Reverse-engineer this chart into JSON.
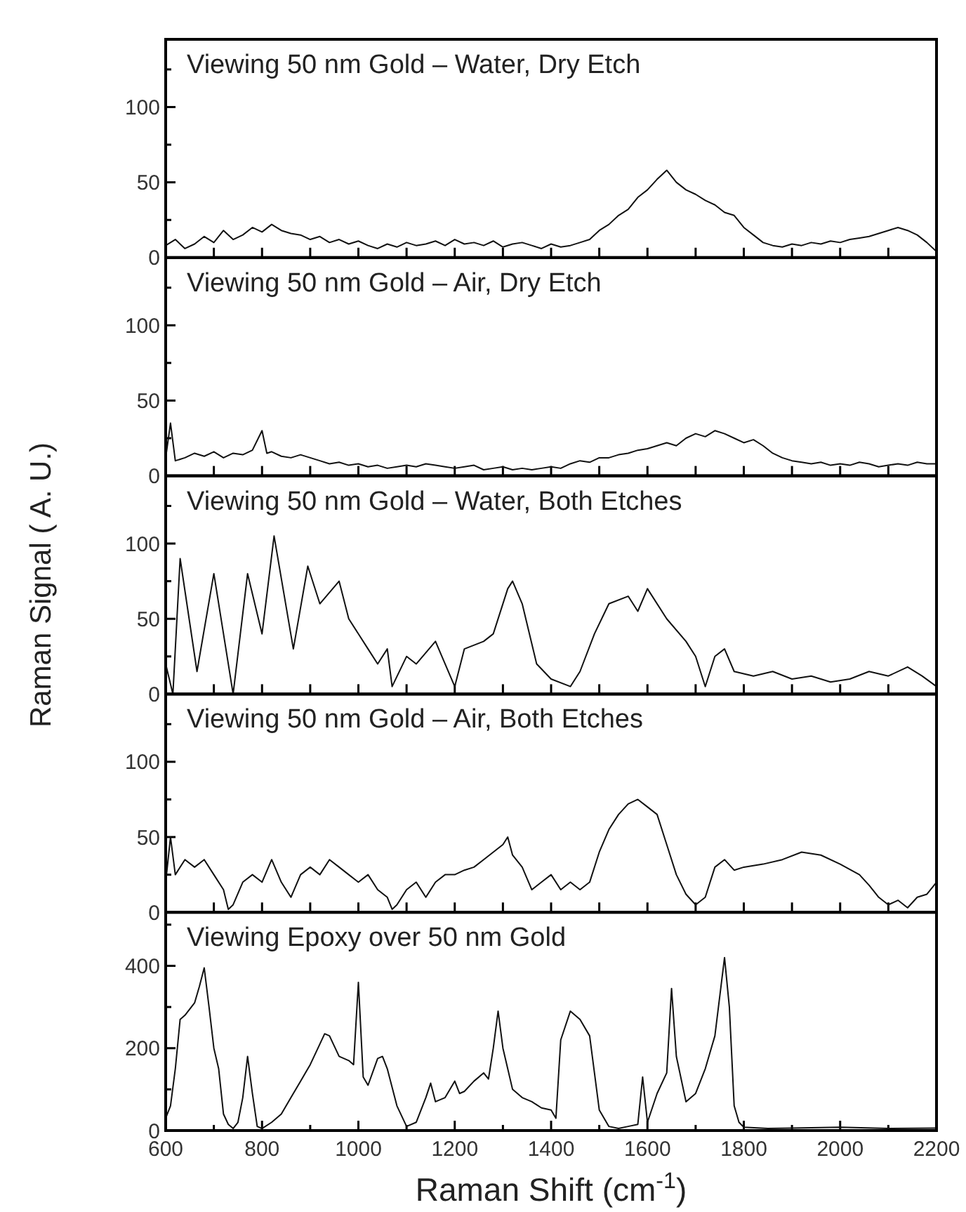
{
  "chart_data": [
    {
      "type": "line",
      "title": "Viewing 50 nm Gold – Water, Dry Etch",
      "tick_labels": "y",
      "xlim": [
        600,
        2200
      ],
      "xticks": [
        {
          "value": 600,
          "label": null
        },
        {
          "value": 700,
          "label": null
        },
        {
          "value": 800,
          "label": null
        },
        {
          "value": 900,
          "label": null
        },
        {
          "value": 1000,
          "label": null
        },
        {
          "value": 1100,
          "label": null
        },
        {
          "value": 1200,
          "label": null
        },
        {
          "value": 1300,
          "label": null
        },
        {
          "value": 1400,
          "label": null
        },
        {
          "value": 1500,
          "label": null
        },
        {
          "value": 1600,
          "label": null
        },
        {
          "value": 1700,
          "label": null
        },
        {
          "value": 1800,
          "label": null
        },
        {
          "value": 1900,
          "label": null
        },
        {
          "value": 2000,
          "label": null
        },
        {
          "value": 2100,
          "label": null
        },
        {
          "value": 2200,
          "label": null
        }
      ],
      "ylim": [
        0,
        145
      ],
      "yticks": [
        0,
        {
          "value": 25,
          "label": null
        },
        50,
        {
          "value": 75,
          "label": null
        },
        100,
        {
          "value": 125,
          "label": null
        }
      ],
      "series": [
        {
          "color": "#111111",
          "x": [
            600,
            620,
            640,
            660,
            680,
            700,
            720,
            740,
            760,
            780,
            800,
            820,
            840,
            860,
            880,
            900,
            920,
            940,
            960,
            980,
            1000,
            1020,
            1040,
            1060,
            1080,
            1100,
            1120,
            1140,
            1160,
            1180,
            1200,
            1220,
            1240,
            1260,
            1280,
            1300,
            1320,
            1340,
            1360,
            1380,
            1400,
            1420,
            1440,
            1460,
            1480,
            1500,
            1520,
            1540,
            1560,
            1580,
            1600,
            1620,
            1640,
            1660,
            1680,
            1700,
            1720,
            1740,
            1760,
            1780,
            1800,
            1820,
            1840,
            1860,
            1880,
            1900,
            1920,
            1940,
            1960,
            1980,
            2000,
            2020,
            2040,
            2060,
            2080,
            2100,
            2120,
            2140,
            2160,
            2180,
            2200
          ],
          "values": [
            8,
            12,
            6,
            9,
            14,
            10,
            18,
            12,
            15,
            20,
            17,
            22,
            18,
            16,
            15,
            12,
            14,
            10,
            12,
            9,
            11,
            8,
            6,
            9,
            7,
            10,
            8,
            9,
            11,
            8,
            12,
            9,
            10,
            8,
            11,
            7,
            9,
            10,
            8,
            6,
            9,
            7,
            8,
            10,
            12,
            18,
            22,
            28,
            32,
            40,
            45,
            52,
            58,
            50,
            45,
            42,
            38,
            35,
            30,
            28,
            20,
            15,
            10,
            8,
            7,
            9,
            8,
            10,
            9,
            11,
            10,
            12,
            13,
            14,
            16,
            18,
            20,
            18,
            15,
            10,
            4
          ]
        }
      ]
    },
    {
      "type": "line",
      "title": "Viewing 50 nm Gold – Air, Dry Etch",
      "tick_labels": "y",
      "xlim": [
        600,
        2200
      ],
      "xticks": [
        {
          "value": 600,
          "label": null
        },
        {
          "value": 700,
          "label": null
        },
        {
          "value": 800,
          "label": null
        },
        {
          "value": 900,
          "label": null
        },
        {
          "value": 1000,
          "label": null
        },
        {
          "value": 1100,
          "label": null
        },
        {
          "value": 1200,
          "label": null
        },
        {
          "value": 1300,
          "label": null
        },
        {
          "value": 1400,
          "label": null
        },
        {
          "value": 1500,
          "label": null
        },
        {
          "value": 1600,
          "label": null
        },
        {
          "value": 1700,
          "label": null
        },
        {
          "value": 1800,
          "label": null
        },
        {
          "value": 1900,
          "label": null
        },
        {
          "value": 2000,
          "label": null
        },
        {
          "value": 2100,
          "label": null
        },
        {
          "value": 2200,
          "label": null
        }
      ],
      "ylim": [
        0,
        145
      ],
      "yticks": [
        0,
        {
          "value": 25,
          "label": null
        },
        50,
        {
          "value": 75,
          "label": null
        },
        100,
        {
          "value": 125,
          "label": null
        }
      ],
      "series": [
        {
          "color": "#111111",
          "x": [
            600,
            610,
            620,
            640,
            660,
            680,
            700,
            720,
            740,
            760,
            780,
            800,
            810,
            820,
            840,
            860,
            880,
            900,
            920,
            940,
            960,
            980,
            1000,
            1020,
            1040,
            1060,
            1080,
            1100,
            1120,
            1140,
            1160,
            1180,
            1200,
            1220,
            1240,
            1260,
            1280,
            1300,
            1320,
            1340,
            1360,
            1380,
            1400,
            1420,
            1440,
            1460,
            1480,
            1500,
            1520,
            1540,
            1560,
            1580,
            1600,
            1620,
            1640,
            1660,
            1680,
            1700,
            1720,
            1740,
            1760,
            1780,
            1800,
            1820,
            1840,
            1860,
            1880,
            1900,
            1920,
            1940,
            1960,
            1980,
            2000,
            2020,
            2040,
            2060,
            2080,
            2100,
            2120,
            2140,
            2160,
            2180,
            2200
          ],
          "values": [
            12,
            35,
            10,
            12,
            15,
            13,
            16,
            12,
            15,
            14,
            17,
            30,
            15,
            16,
            13,
            12,
            14,
            12,
            10,
            8,
            9,
            7,
            8,
            6,
            7,
            5,
            6,
            7,
            6,
            8,
            7,
            6,
            5,
            6,
            7,
            4,
            5,
            6,
            4,
            5,
            4,
            5,
            6,
            5,
            8,
            10,
            9,
            12,
            12,
            14,
            15,
            17,
            18,
            20,
            22,
            20,
            25,
            28,
            26,
            30,
            28,
            25,
            22,
            24,
            20,
            15,
            12,
            10,
            9,
            8,
            9,
            7,
            8,
            7,
            9,
            8,
            6,
            7,
            8,
            7,
            9,
            8,
            8
          ]
        }
      ]
    },
    {
      "type": "line",
      "title": "Viewing 50 nm Gold – Water, Both Etches",
      "ylabel": "Raman Signal ( A. U.)",
      "tick_labels": "y",
      "xlim": [
        600,
        2200
      ],
      "xticks": [
        {
          "value": 600,
          "label": null
        },
        {
          "value": 700,
          "label": null
        },
        {
          "value": 800,
          "label": null
        },
        {
          "value": 900,
          "label": null
        },
        {
          "value": 1000,
          "label": null
        },
        {
          "value": 1100,
          "label": null
        },
        {
          "value": 1200,
          "label": null
        },
        {
          "value": 1300,
          "label": null
        },
        {
          "value": 1400,
          "label": null
        },
        {
          "value": 1500,
          "label": null
        },
        {
          "value": 1600,
          "label": null
        },
        {
          "value": 1700,
          "label": null
        },
        {
          "value": 1800,
          "label": null
        },
        {
          "value": 1900,
          "label": null
        },
        {
          "value": 2000,
          "label": null
        },
        {
          "value": 2100,
          "label": null
        },
        {
          "value": 2200,
          "label": null
        }
      ],
      "ylim": [
        0,
        145
      ],
      "yticks": [
        0,
        {
          "value": 25,
          "label": null
        },
        50,
        {
          "value": 75,
          "label": null
        },
        100,
        {
          "value": 125,
          "label": null
        }
      ],
      "series": [
        {
          "color": "#111111",
          "x": [
            600,
            615,
            630,
            665,
            700,
            740,
            770,
            800,
            825,
            865,
            895,
            920,
            960,
            980,
            1020,
            1040,
            1060,
            1070,
            1100,
            1120,
            1160,
            1200,
            1220,
            1260,
            1280,
            1310,
            1320,
            1340,
            1370,
            1400,
            1440,
            1460,
            1490,
            1520,
            1560,
            1580,
            1600,
            1640,
            1680,
            1700,
            1720,
            1740,
            1760,
            1780,
            1820,
            1860,
            1900,
            1940,
            1980,
            2020,
            2060,
            2100,
            2140,
            2170,
            2200
          ],
          "values": [
            20,
            0,
            90,
            15,
            80,
            0,
            80,
            40,
            105,
            30,
            85,
            60,
            75,
            50,
            30,
            20,
            30,
            5,
            25,
            20,
            35,
            5,
            30,
            35,
            40,
            70,
            75,
            60,
            20,
            10,
            5,
            15,
            40,
            60,
            65,
            55,
            70,
            50,
            35,
            25,
            5,
            25,
            30,
            15,
            12,
            15,
            10,
            12,
            8,
            10,
            15,
            12,
            18,
            12,
            5
          ]
        }
      ]
    },
    {
      "type": "line",
      "title": "Viewing 50 nm Gold – Air, Both Etches",
      "tick_labels": "y",
      "xlim": [
        600,
        2200
      ],
      "xticks": [
        {
          "value": 600,
          "label": null
        },
        {
          "value": 700,
          "label": null
        },
        {
          "value": 800,
          "label": null
        },
        {
          "value": 900,
          "label": null
        },
        {
          "value": 1000,
          "label": null
        },
        {
          "value": 1100,
          "label": null
        },
        {
          "value": 1200,
          "label": null
        },
        {
          "value": 1300,
          "label": null
        },
        {
          "value": 1400,
          "label": null
        },
        {
          "value": 1500,
          "label": null
        },
        {
          "value": 1600,
          "label": null
        },
        {
          "value": 1700,
          "label": null
        },
        {
          "value": 1800,
          "label": null
        },
        {
          "value": 1900,
          "label": null
        },
        {
          "value": 2000,
          "label": null
        },
        {
          "value": 2100,
          "label": null
        },
        {
          "value": 2200,
          "label": null
        }
      ],
      "ylim": [
        0,
        145
      ],
      "yticks": [
        0,
        {
          "value": 25,
          "label": null
        },
        50,
        {
          "value": 75,
          "label": null
        },
        100,
        {
          "value": 125,
          "label": null
        }
      ],
      "series": [
        {
          "color": "#111111",
          "x": [
            600,
            610,
            620,
            640,
            660,
            680,
            700,
            720,
            730,
            740,
            760,
            780,
            800,
            820,
            840,
            860,
            880,
            900,
            920,
            940,
            960,
            980,
            1000,
            1020,
            1040,
            1060,
            1070,
            1080,
            1100,
            1120,
            1140,
            1160,
            1180,
            1200,
            1220,
            1240,
            1260,
            1280,
            1300,
            1310,
            1320,
            1340,
            1360,
            1380,
            1400,
            1420,
            1440,
            1460,
            1480,
            1500,
            1520,
            1540,
            1560,
            1580,
            1600,
            1620,
            1640,
            1660,
            1680,
            1700,
            1720,
            1740,
            1760,
            1780,
            1800,
            1840,
            1880,
            1920,
            1960,
            2000,
            2040,
            2060,
            2080,
            2100,
            2120,
            2140,
            2160,
            2180,
            2200
          ],
          "values": [
            20,
            50,
            25,
            35,
            30,
            35,
            25,
            15,
            2,
            5,
            20,
            25,
            20,
            35,
            20,
            10,
            25,
            30,
            25,
            35,
            30,
            25,
            20,
            25,
            15,
            10,
            2,
            5,
            15,
            20,
            10,
            20,
            25,
            25,
            28,
            30,
            35,
            40,
            45,
            50,
            38,
            30,
            15,
            20,
            25,
            15,
            20,
            15,
            20,
            40,
            55,
            65,
            72,
            75,
            70,
            65,
            45,
            25,
            12,
            5,
            10,
            30,
            35,
            28,
            30,
            32,
            35,
            40,
            38,
            32,
            25,
            18,
            10,
            5,
            8,
            3,
            10,
            12,
            20
          ]
        }
      ]
    },
    {
      "type": "line",
      "title": "Viewing Epoxy over 50 nm Gold",
      "xlabel": "Raman Shift (cm$^{-1}$)",
      "xlim": [
        600,
        2200
      ],
      "xticks": [
        600,
        {
          "value": 700,
          "label": null
        },
        800,
        {
          "value": 900,
          "label": null
        },
        1000,
        {
          "value": 1100,
          "label": null
        },
        1200,
        {
          "value": 1300,
          "label": null
        },
        1400,
        {
          "value": 1500,
          "label": null
        },
        1600,
        {
          "value": 1700,
          "label": null
        },
        1800,
        {
          "value": 1900,
          "label": null
        },
        2000,
        {
          "value": 2100,
          "label": null
        },
        2200
      ],
      "ylim": [
        0,
        530
      ],
      "yticks": [
        0,
        {
          "value": 100,
          "label": null
        },
        200,
        {
          "value": 300,
          "label": null
        },
        400,
        {
          "value": 500,
          "label": null
        }
      ],
      "series": [
        {
          "color": "#111111",
          "x": [
            600,
            610,
            620,
            630,
            640,
            660,
            670,
            680,
            690,
            700,
            710,
            720,
            730,
            740,
            750,
            760,
            770,
            780,
            790,
            800,
            820,
            840,
            860,
            880,
            900,
            920,
            930,
            940,
            960,
            980,
            990,
            1000,
            1010,
            1020,
            1040,
            1050,
            1060,
            1080,
            1100,
            1120,
            1140,
            1150,
            1160,
            1180,
            1200,
            1210,
            1220,
            1240,
            1260,
            1270,
            1280,
            1290,
            1300,
            1320,
            1340,
            1360,
            1380,
            1400,
            1410,
            1420,
            1440,
            1460,
            1480,
            1500,
            1520,
            1540,
            1560,
            1580,
            1590,
            1600,
            1620,
            1640,
            1650,
            1660,
            1680,
            1700,
            1720,
            1740,
            1760,
            1770,
            1780,
            1790,
            1800,
            1850,
            1900,
            2000,
            2100,
            2200
          ],
          "values": [
            30,
            60,
            150,
            270,
            280,
            310,
            350,
            395,
            300,
            200,
            150,
            40,
            15,
            5,
            20,
            80,
            180,
            90,
            10,
            5,
            20,
            40,
            80,
            120,
            160,
            210,
            235,
            230,
            180,
            170,
            160,
            360,
            130,
            110,
            175,
            180,
            150,
            60,
            10,
            20,
            80,
            115,
            70,
            80,
            120,
            90,
            95,
            120,
            140,
            125,
            200,
            290,
            200,
            100,
            80,
            70,
            55,
            50,
            30,
            220,
            290,
            270,
            230,
            50,
            10,
            5,
            10,
            15,
            130,
            20,
            90,
            140,
            345,
            180,
            70,
            90,
            150,
            230,
            420,
            300,
            60,
            20,
            8,
            5,
            6,
            8,
            5,
            6
          ]
        }
      ]
    }
  ]
}
